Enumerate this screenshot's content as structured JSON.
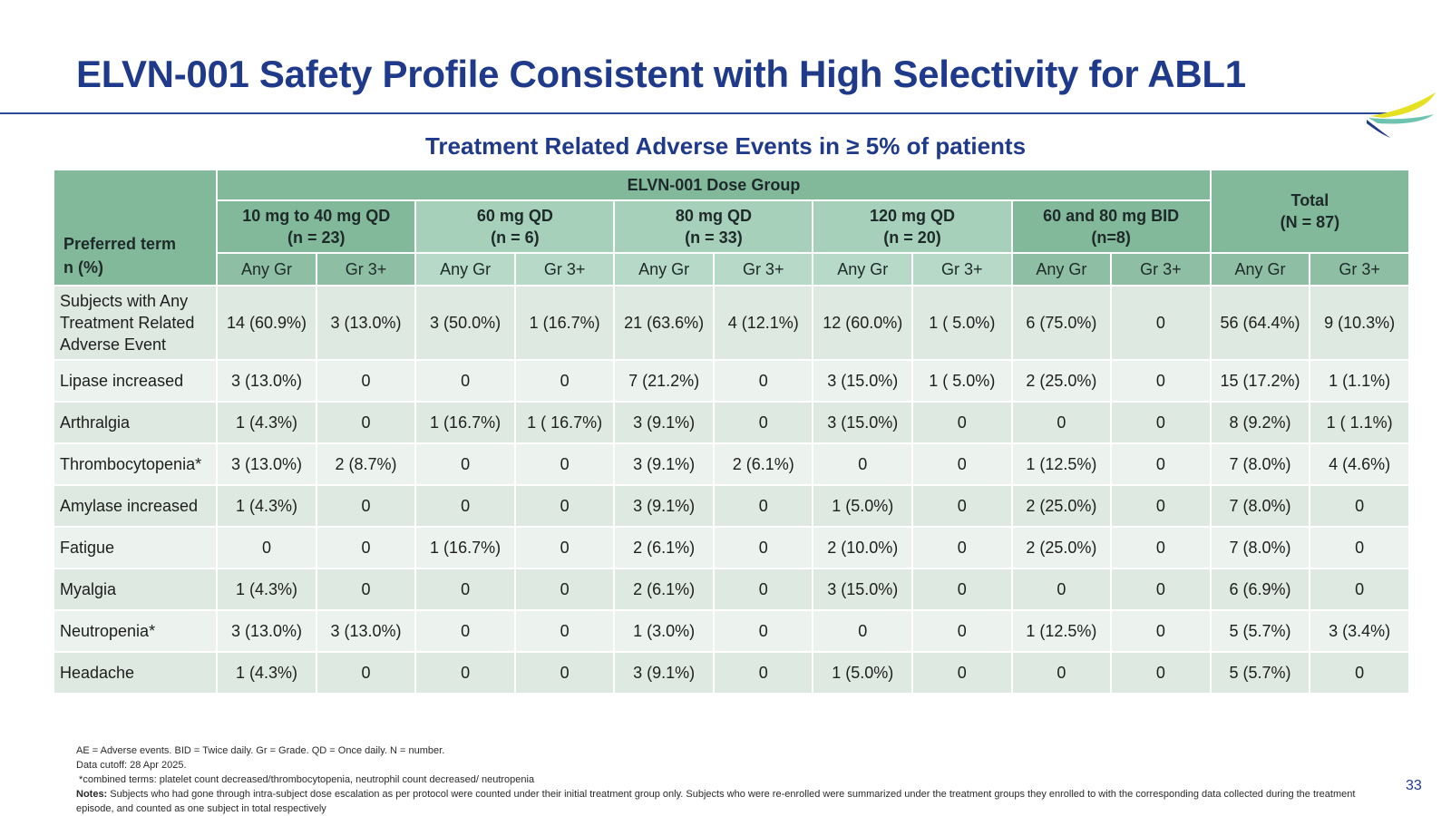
{
  "title": "ELVN-001 Safety Profile Consistent with High Selectivity for ABL1",
  "subtitle": "Treatment Related Adverse Events in ≥ 5% of patients",
  "table": {
    "corner_line1": "Preferred term",
    "corner_line2": "n (%)",
    "dose_group_header": "ELVN-001 Dose Group",
    "groups": [
      {
        "line1": "10 mg to 40 mg QD",
        "line2": "(n = 23)"
      },
      {
        "line1": "60 mg QD",
        "line2": "(n = 6)"
      },
      {
        "line1": "80 mg QD",
        "line2": "(n = 33)"
      },
      {
        "line1": "120 mg QD",
        "line2": "(n = 20)"
      },
      {
        "line1": "60 and 80 mg BID",
        "line2": "(n=8)"
      }
    ],
    "total": {
      "line1": "Total",
      "line2": "(N = 87)"
    },
    "sub_any": "Any Gr",
    "sub_gr3": "Gr 3+",
    "rows": [
      {
        "term_lines": [
          "Subjects with Any",
          "Treatment Related",
          "Adverse Event"
        ],
        "values": [
          "14 (60.9%)",
          "3 (13.0%)",
          "3 (50.0%)",
          "1 (16.7%)",
          "21 (63.6%)",
          "4 (12.1%)",
          "12 (60.0%)",
          "1 ( 5.0%)",
          "6 (75.0%)",
          "0",
          "56 (64.4%)",
          "9 (10.3%)"
        ]
      },
      {
        "term_lines": [
          "Lipase increased"
        ],
        "values": [
          "3 (13.0%)",
          "0",
          "0",
          "0",
          "7 (21.2%)",
          "0",
          "3 (15.0%)",
          "1 ( 5.0%)",
          "2 (25.0%)",
          "0",
          "15 (17.2%)",
          "1 (1.1%)"
        ]
      },
      {
        "term_lines": [
          "Arthralgia"
        ],
        "values": [
          "1 (4.3%)",
          "0",
          "1 (16.7%)",
          "1 ( 16.7%)",
          "3 (9.1%)",
          "0",
          "3 (15.0%)",
          "0",
          "0",
          "0",
          "8 (9.2%)",
          "1 ( 1.1%)"
        ]
      },
      {
        "term_lines": [
          "Thrombocytopenia*"
        ],
        "values": [
          "3 (13.0%)",
          "2 (8.7%)",
          "0",
          "0",
          "3 (9.1%)",
          "2 (6.1%)",
          "0",
          "0",
          "1 (12.5%)",
          "0",
          "7 (8.0%)",
          "4 (4.6%)"
        ]
      },
      {
        "term_lines": [
          "Amylase increased"
        ],
        "values": [
          "1 (4.3%)",
          "0",
          "0",
          "0",
          "3 (9.1%)",
          "0",
          "1 (5.0%)",
          "0",
          "2 (25.0%)",
          "0",
          "7 (8.0%)",
          "0"
        ]
      },
      {
        "term_lines": [
          "Fatigue"
        ],
        "values": [
          "0",
          "0",
          "1 (16.7%)",
          "0",
          "2 (6.1%)",
          "0",
          "2 (10.0%)",
          "0",
          "2 (25.0%)",
          "0",
          "7 (8.0%)",
          "0"
        ]
      },
      {
        "term_lines": [
          "Myalgia"
        ],
        "values": [
          "1 (4.3%)",
          "0",
          "0",
          "0",
          "2 (6.1%)",
          "0",
          "3 (15.0%)",
          "0",
          "0",
          "0",
          "6 (6.9%)",
          "0"
        ]
      },
      {
        "term_lines": [
          "Neutropenia*"
        ],
        "values": [
          "3 (13.0%)",
          "3 (13.0%)",
          "0",
          "0",
          "1 (3.0%)",
          "0",
          "0",
          "0",
          "1 (12.5%)",
          "0",
          "5 (5.7%)",
          "3 (3.4%)"
        ]
      },
      {
        "term_lines": [
          "Headache"
        ],
        "values": [
          "1 (4.3%)",
          "0",
          "0",
          "0",
          "3 (9.1%)",
          "0",
          "1 (5.0%)",
          "0",
          "0",
          "0",
          "5 (5.7%)",
          "0"
        ]
      }
    ]
  },
  "footnotes": {
    "line1": "AE = Adverse events. BID = Twice daily. Gr = Grade. QD = Once daily. N = number.",
    "line2": "Data cutoff: 28 Apr 2025.",
    "line3": " *combined terms: platelet count decreased/thrombocytopenia, neutrophil count decreased/ neutropenia",
    "notes_label": "Notes:",
    "notes_text": " Subjects who had gone through intra-subject dose escalation as per protocol were counted under their initial treatment group only. Subjects who were re-enrolled were summarized under the treatment groups they enrolled to with the corresponding data collected during the treatment episode, and counted as one subject in total respectively"
  },
  "page_number": "33",
  "logo_icon": "company-logo-swoosh",
  "colors": {
    "title": "#1f3a8a",
    "header_dark": "#83b99b",
    "header_light": "#a7d0bb",
    "row_odd": "#dde9e1",
    "row_even": "#ecf3ef",
    "logo_yellow": "#e6e022",
    "logo_teal": "#6cc4b0",
    "logo_navy": "#1f3a8a"
  }
}
